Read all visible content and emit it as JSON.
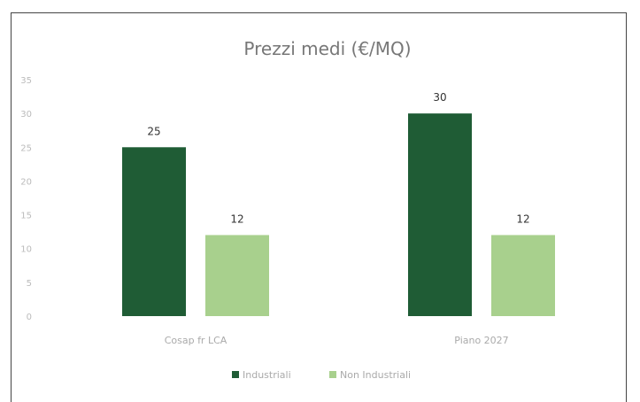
{
  "chart_data": {
    "type": "bar",
    "title": "Prezzi medi (€/MQ)",
    "categories": [
      "Cosap fr LCA",
      "Piano 2027"
    ],
    "series": [
      {
        "name": "Industriali",
        "values": [
          25,
          30
        ],
        "color": "#1f5c35"
      },
      {
        "name": "Non Industriali",
        "values": [
          12,
          12
        ],
        "color": "#a8d08d"
      }
    ],
    "ylim": [
      0,
      35
    ],
    "yticks": [
      "0",
      "5",
      "10",
      "15",
      "20",
      "25",
      "30",
      "35"
    ],
    "grid": false,
    "legend": "bottom"
  }
}
